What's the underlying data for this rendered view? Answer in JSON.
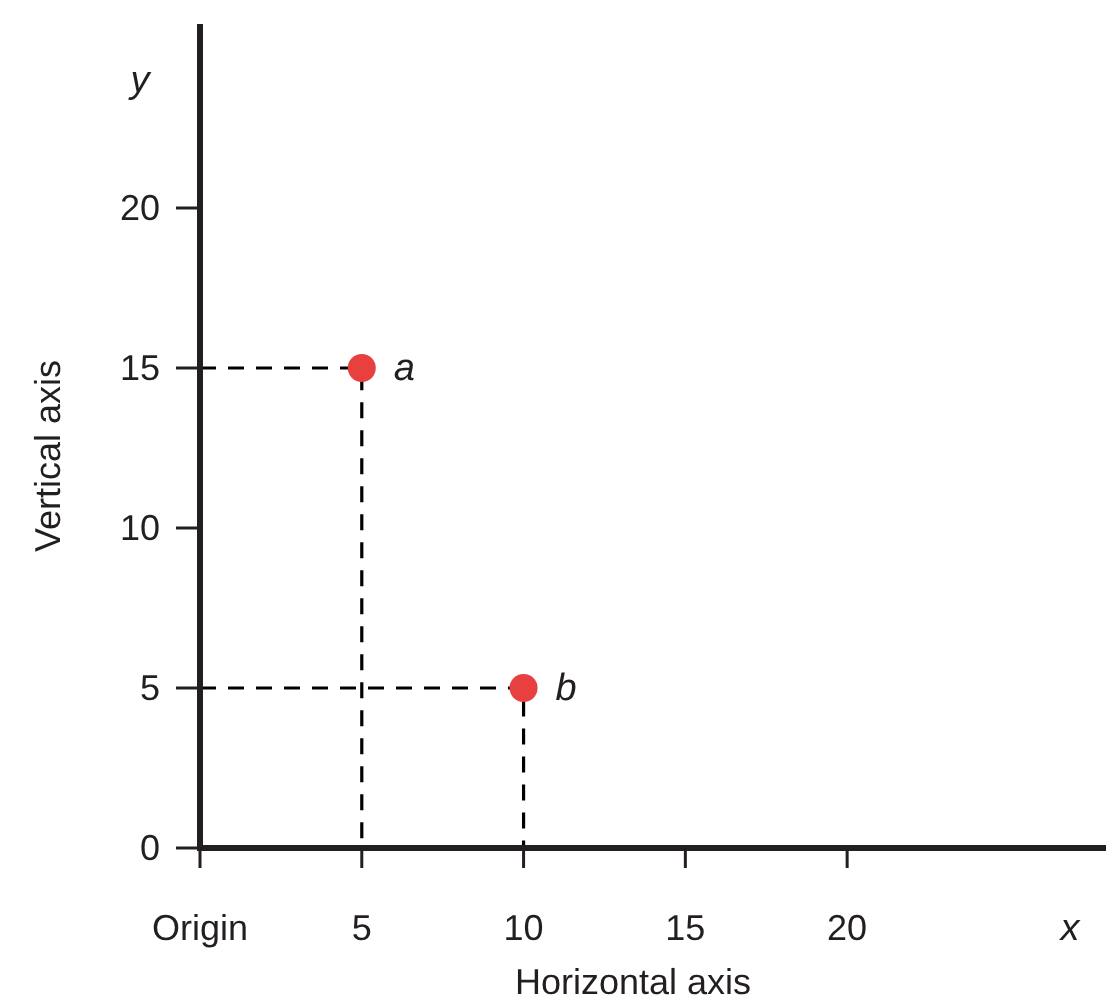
{
  "chart_data": {
    "type": "scatter",
    "xlabel": "Horizontal axis",
    "ylabel": "Vertical axis",
    "xlim": [
      0,
      28
    ],
    "ylim": [
      0,
      25.75
    ],
    "xticks": [
      {
        "value": 0,
        "label": "Origin"
      },
      5,
      10,
      15,
      20
    ],
    "yticks": [
      0,
      5,
      10,
      15,
      20
    ],
    "series": [
      {
        "type": "line",
        "x": [
          0,
          5,
          5
        ],
        "values": [
          15,
          15,
          0
        ],
        "color": "#000000",
        "line_style": "dashed",
        "marker": "none"
      },
      {
        "type": "line",
        "x": [
          0,
          10,
          10
        ],
        "values": [
          5,
          5,
          0
        ],
        "color": "#000000",
        "line_style": "dashed",
        "marker": "none"
      },
      {
        "type": "scatter",
        "x": [
          5,
          10
        ],
        "values": [
          15,
          5
        ],
        "color": "#e8403f",
        "marker": "circle"
      }
    ],
    "annotations": [
      {
        "text": "a",
        "x": 5,
        "y": 15
      },
      {
        "text": "b",
        "x": 10,
        "y": 5
      },
      "x",
      "y"
    ]
  }
}
